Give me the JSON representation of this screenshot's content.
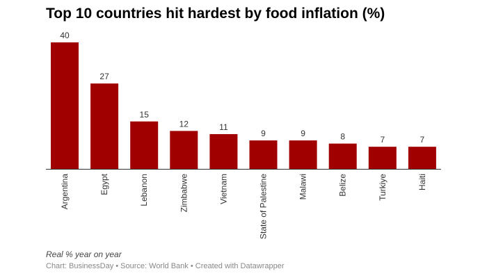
{
  "chart_data": {
    "type": "bar",
    "title": "Top 10 countries hit hardest by food inflation (%)",
    "categories": [
      "Argentina",
      "Egypt",
      "Lebanon",
      "Zimbabwe",
      "Vietnam",
      "State of Palestine",
      "Malawi",
      "Belize",
      "Turkiye",
      "Haiti"
    ],
    "values": [
      40,
      27,
      15,
      12,
      11,
      9,
      9,
      8,
      7,
      7
    ],
    "xlabel": "",
    "ylabel": "",
    "ylim": [
      0,
      40
    ],
    "grid": false,
    "bar_color": "#a00000"
  },
  "notes": "Real % year on year",
  "source": "Chart: BusinessDay • Source: World Bank • Created with Datawrapper"
}
